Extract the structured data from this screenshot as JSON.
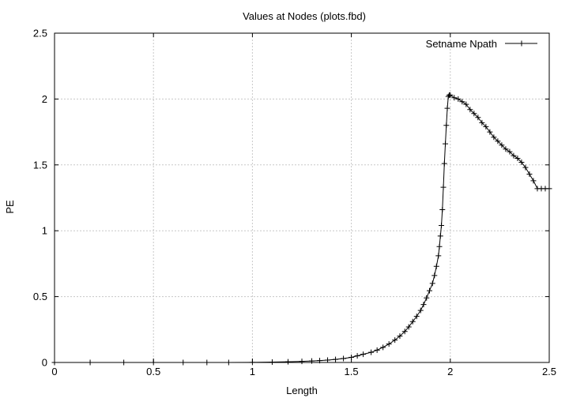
{
  "chart_data": {
    "type": "line",
    "title": "Values at Nodes (plots.fbd)",
    "xlabel": "Length",
    "ylabel": "PE",
    "xlim": [
      0,
      2.5
    ],
    "ylim": [
      0,
      2.5
    ],
    "xticks": [
      "0",
      "0.5",
      "1",
      "1.5",
      "2",
      "2.5"
    ],
    "yticks": [
      "0",
      "0.5",
      "1",
      "1.5",
      "2",
      "2.5"
    ],
    "grid": true,
    "legend_position": "top-right",
    "series": [
      {
        "name": "Setname Npath",
        "marker": "plus",
        "x": [
          0,
          0.18,
          0.35,
          0.5,
          0.65,
          0.77,
          0.88,
          1.0,
          1.1,
          1.18,
          1.25,
          1.3,
          1.34,
          1.38,
          1.42,
          1.46,
          1.5,
          1.53,
          1.56,
          1.6,
          1.63,
          1.66,
          1.69,
          1.72,
          1.745,
          1.77,
          1.79,
          1.81,
          1.83,
          1.85,
          1.865,
          1.88,
          1.895,
          1.91,
          1.92,
          1.93,
          1.94,
          1.945,
          1.95,
          1.955,
          1.96,
          1.965,
          1.97,
          1.975,
          1.98,
          1.985,
          1.99,
          1.995,
          2.0,
          2.02,
          2.04,
          2.06,
          2.08,
          2.1,
          2.12,
          2.14,
          2.16,
          2.18,
          2.2,
          2.22,
          2.24,
          2.26,
          2.28,
          2.3,
          2.32,
          2.34,
          2.36,
          2.38,
          2.4,
          2.42,
          2.44,
          2.46,
          2.48,
          2.5
        ],
        "y": [
          0,
          0,
          0,
          0,
          0,
          0,
          0,
          0.001,
          0.003,
          0.005,
          0.008,
          0.011,
          0.014,
          0.018,
          0.023,
          0.03,
          0.039,
          0.05,
          0.062,
          0.077,
          0.094,
          0.115,
          0.14,
          0.17,
          0.2,
          0.235,
          0.27,
          0.31,
          0.35,
          0.395,
          0.44,
          0.49,
          0.545,
          0.6,
          0.66,
          0.73,
          0.81,
          0.88,
          0.96,
          1.04,
          1.16,
          1.33,
          1.51,
          1.66,
          1.8,
          1.93,
          2.02,
          2.03,
          2.03,
          2.01,
          2.0,
          1.98,
          1.96,
          1.92,
          1.89,
          1.86,
          1.82,
          1.79,
          1.75,
          1.71,
          1.68,
          1.65,
          1.62,
          1.6,
          1.57,
          1.55,
          1.52,
          1.48,
          1.43,
          1.38,
          1.32,
          1.32,
          1.32,
          1.32
        ]
      }
    ]
  }
}
